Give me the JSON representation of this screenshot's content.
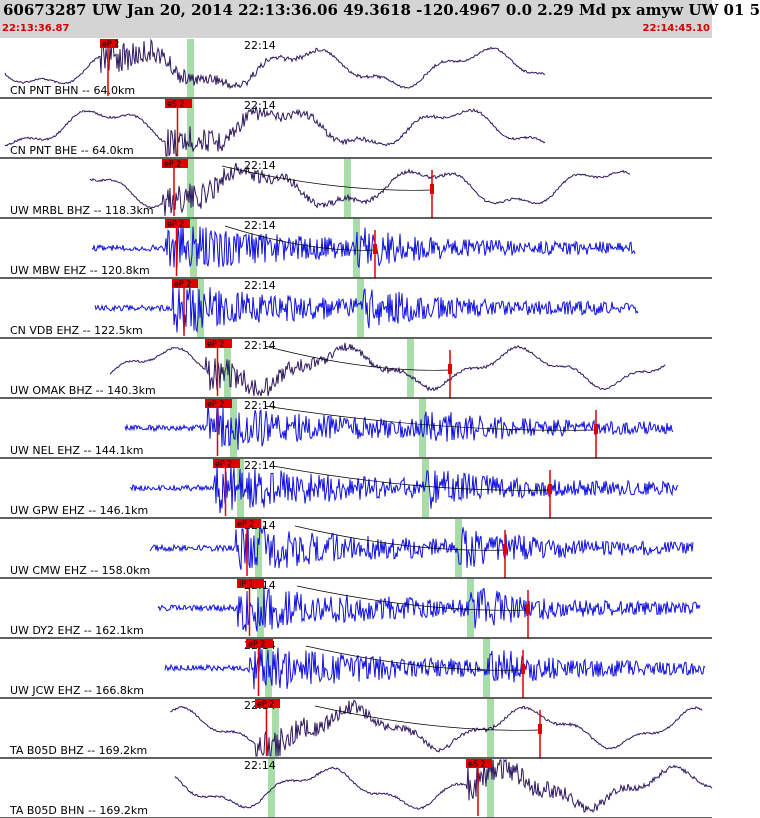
{
  "header": {
    "title": "60673287 UW Jan 20, 2014 22:13:36.06   49.3618 -120.4967  0.0 2.29 Md px amyw UW 01   5",
    "start_time": "22:13:36.87",
    "end_time": "22:14:45.10"
  },
  "colors": {
    "broadband_trace": "#301860",
    "short_period_trace": "#1010e0",
    "pick_box": "#e00000",
    "pick_line": "#e00000",
    "window_band": "#a8dca8",
    "background": "#ffffff"
  },
  "time_tick_label": "22:14",
  "traces": [
    {
      "label": "CN PNT BHN -- 64.0km",
      "pick": "eP 2",
      "type": "broadband"
    },
    {
      "label": "CN PNT BHE -- 64.0km",
      "pick": "eS 2",
      "type": "broadband"
    },
    {
      "label": "UW MRBL BHZ -- 118.3km",
      "pick": "eP 2",
      "type": "broadband"
    },
    {
      "label": "UW MBW EHZ -- 120.8km",
      "pick": "eP 2",
      "type": "short-period"
    },
    {
      "label": "CN VDB EHZ -- 122.5km",
      "pick": "eP 2",
      "type": "short-period"
    },
    {
      "label": "UW OMAK BHZ -- 140.3km",
      "pick": "eP 2",
      "type": "broadband"
    },
    {
      "label": "UW NEL EHZ -- 144.1km",
      "pick": "eP 2",
      "type": "short-period"
    },
    {
      "label": "UW GPW EHZ -- 146.1km",
      "pick": "eP 2",
      "type": "short-period"
    },
    {
      "label": "UW CMW EHZ -- 158.0km",
      "pick": "eP 2",
      "type": "short-period"
    },
    {
      "label": "UW DY2 EHZ -- 162.1km",
      "pick": "iP 1",
      "type": "short-period"
    },
    {
      "label": "UW JCW EHZ -- 166.8km",
      "pick": "eP 2",
      "type": "short-period"
    },
    {
      "label": "TA B05D BHZ -- 169.2km",
      "pick": "eP 2",
      "type": "broadband"
    },
    {
      "label": "TA B05D BHN -- 169.2km",
      "pick": "eS 2",
      "type": "broadband"
    }
  ]
}
